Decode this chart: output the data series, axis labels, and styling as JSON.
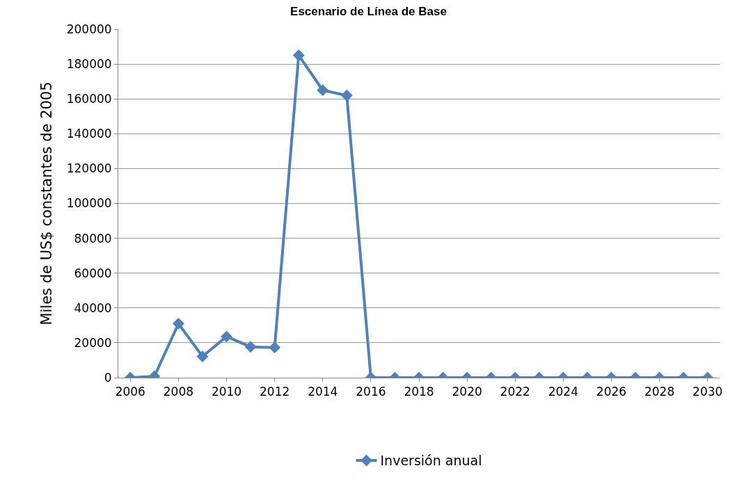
{
  "chart_data": {
    "type": "line",
    "title": "Escenario de Línea de Base",
    "ylabel": "Miles de US$ constantes de 2005",
    "x": [
      2006,
      2007,
      2008,
      2009,
      2010,
      2011,
      2012,
      2013,
      2014,
      2015,
      2016,
      2017,
      2018,
      2019,
      2020,
      2021,
      2022,
      2023,
      2024,
      2025,
      2026,
      2027,
      2028,
      2029,
      2030
    ],
    "series": [
      {
        "name": "Inversión anual",
        "color": "#4f81bd",
        "values": [
          0,
          800,
          31000,
          12200,
          23600,
          17700,
          17300,
          185000,
          165000,
          162000,
          0,
          0,
          0,
          0,
          0,
          0,
          0,
          0,
          0,
          0,
          0,
          0,
          0,
          0,
          0
        ]
      }
    ],
    "xlim": [
      2005.5,
      2030.5
    ],
    "xticks": [
      2006,
      2008,
      2010,
      2012,
      2014,
      2016,
      2018,
      2020,
      2022,
      2024,
      2026,
      2028,
      2030
    ],
    "ylim": [
      0,
      200000
    ],
    "yticks": [
      0,
      20000,
      40000,
      60000,
      80000,
      100000,
      120000,
      140000,
      160000,
      180000,
      200000
    ],
    "grid": "y",
    "legend": "bottom",
    "marker": "diamond",
    "line_style": "solid"
  }
}
